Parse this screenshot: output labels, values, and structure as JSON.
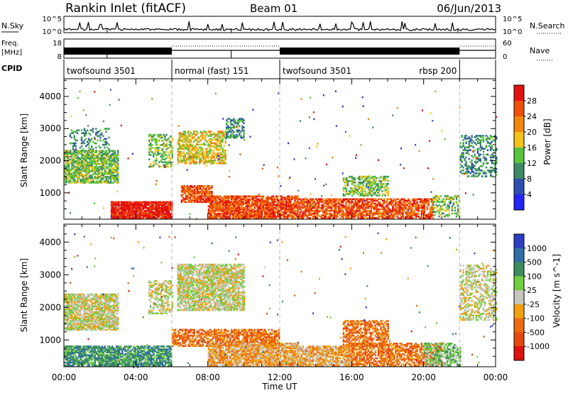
{
  "header": {
    "station": "Rankin Inlet (fitACF)",
    "beam": "Beam 01",
    "date": "06/Jun/2013"
  },
  "noise_panel": {
    "left_label": "N.Sky",
    "right_label": "N.Search",
    "ticks_left": [
      "10^5",
      "10^0"
    ],
    "ticks_right": [
      "10^5",
      "10^0"
    ]
  },
  "freq_panel": {
    "left_label_line1": "Freq.",
    "left_label_line2": "[MHz]",
    "left_ticks": [
      "18",
      "8"
    ],
    "right_label": "Nave",
    "right_ticks": [
      "60",
      "0"
    ]
  },
  "cpid": {
    "label": "CPID",
    "segments": [
      {
        "name": "twofsound 3501",
        "start_hour": 0,
        "end_hour": 6
      },
      {
        "name": "normal (fast) 151",
        "start_hour": 6,
        "end_hour": 12
      },
      {
        "name": "twofsound 3501",
        "start_hour": 12,
        "end_hour": 22
      },
      {
        "name": "rbsp 200",
        "start_hour": 22,
        "end_hour": 24
      }
    ]
  },
  "x_axis": {
    "label": "Time UT",
    "ticks": [
      "00:00",
      "04:00",
      "08:00",
      "12:00",
      "16:00",
      "20:00",
      "00:00"
    ]
  },
  "chart_data": [
    {
      "type": "heatmap",
      "xlabel": "Time UT",
      "ylabel": "Slant Range [km]",
      "xlim": [
        0,
        24
      ],
      "ylim": [
        180,
        4550
      ],
      "y_ticks": [
        "1000",
        "2000",
        "3000",
        "4000"
      ],
      "colorbar": {
        "label": "Power [dB]",
        "tick_labels": [
          "4",
          "8",
          "12",
          "16",
          "20",
          "24",
          "28"
        ],
        "colors": [
          "#2525f5",
          "#2d4fb0",
          "#3d8a66",
          "#58c43e",
          "#f3c21b",
          "#f3860d",
          "#ee4f0a",
          "#e11111"
        ]
      },
      "regions": [
        {
          "t0": 0.0,
          "t1": 3.0,
          "r0": 1300,
          "r1": 2300,
          "level": 3,
          "density": 0.75
        },
        {
          "t0": 0.3,
          "t1": 2.5,
          "r0": 2300,
          "r1": 3000,
          "level": 2,
          "density": 0.25
        },
        {
          "t0": 2.6,
          "t1": 6.0,
          "r0": 200,
          "r1": 700,
          "level": 7,
          "density": 0.92
        },
        {
          "t0": 4.7,
          "t1": 6.0,
          "r0": 1800,
          "r1": 2800,
          "level": 3,
          "density": 0.5
        },
        {
          "t0": 6.3,
          "t1": 9.0,
          "r0": 1900,
          "r1": 2900,
          "level": 4,
          "density": 0.6
        },
        {
          "t0": 6.5,
          "t1": 8.2,
          "r0": 700,
          "r1": 1200,
          "level": 6,
          "density": 0.75
        },
        {
          "t0": 9.0,
          "t1": 10.0,
          "r0": 2700,
          "r1": 3300,
          "level": 2,
          "density": 0.5
        },
        {
          "t0": 8.0,
          "t1": 13.0,
          "r0": 200,
          "r1": 900,
          "level": 6,
          "density": 0.85
        },
        {
          "t0": 13.0,
          "t1": 16.0,
          "r0": 200,
          "r1": 800,
          "level": 6,
          "density": 0.75
        },
        {
          "t0": 15.5,
          "t1": 18.0,
          "r0": 900,
          "r1": 1500,
          "level": 3,
          "density": 0.6
        },
        {
          "t0": 16.0,
          "t1": 20.5,
          "r0": 200,
          "r1": 800,
          "level": 6,
          "density": 0.72
        },
        {
          "t0": 20.5,
          "t1": 22.0,
          "r0": 250,
          "r1": 900,
          "level": 3,
          "density": 0.5
        },
        {
          "t0": 22.0,
          "t1": 24.0,
          "r0": 1500,
          "r1": 2800,
          "level": 2,
          "density": 0.35
        }
      ]
    },
    {
      "type": "heatmap",
      "xlabel": "Time UT",
      "ylabel": "Slant Range [km]",
      "xlim": [
        0,
        24
      ],
      "ylim": [
        180,
        4550
      ],
      "y_ticks": [
        "1000",
        "2000",
        "3000",
        "4000"
      ],
      "colorbar": {
        "label": "Velocity [m s^-1]",
        "tick_labels": [
          "1000",
          "500",
          "100",
          "25",
          "-25",
          "-100",
          "-500",
          "-1000"
        ],
        "colors": [
          "#2b3fc0",
          "#2f6fa6",
          "#3c8d5e",
          "#6fcf3f",
          "#c6c6be",
          "#f0a010",
          "#ee6a10",
          "#e44810",
          "#de1010"
        ]
      },
      "regions": [
        {
          "t0": 0.0,
          "t1": 3.0,
          "r0": 1300,
          "r1": 2400,
          "level": 4,
          "density": 0.8
        },
        {
          "t0": 0.0,
          "t1": 6.0,
          "r0": 200,
          "r1": 800,
          "level": 2,
          "density": 0.8
        },
        {
          "t0": 4.7,
          "t1": 6.0,
          "r0": 1800,
          "r1": 2800,
          "level": 4,
          "density": 0.5
        },
        {
          "t0": 6.3,
          "t1": 10.0,
          "r0": 1900,
          "r1": 3300,
          "level": 4,
          "density": 0.75
        },
        {
          "t0": 6.0,
          "t1": 12.0,
          "r0": 800,
          "r1": 1300,
          "level": 6,
          "density": 0.7
        },
        {
          "t0": 8.0,
          "t1": 13.0,
          "r0": 200,
          "r1": 900,
          "level": 5,
          "density": 0.8
        },
        {
          "t0": 13.0,
          "t1": 16.0,
          "r0": 200,
          "r1": 800,
          "level": 5,
          "density": 0.75
        },
        {
          "t0": 15.5,
          "t1": 18.0,
          "r0": 800,
          "r1": 1600,
          "level": 6,
          "density": 0.6
        },
        {
          "t0": 16.0,
          "t1": 21.0,
          "r0": 200,
          "r1": 900,
          "level": 6,
          "density": 0.65
        },
        {
          "t0": 20.0,
          "t1": 22.0,
          "r0": 200,
          "r1": 900,
          "level": 3,
          "density": 0.55
        },
        {
          "t0": 22.0,
          "t1": 24.0,
          "r0": 1600,
          "r1": 3300,
          "level": 4,
          "density": 0.4
        }
      ]
    }
  ]
}
